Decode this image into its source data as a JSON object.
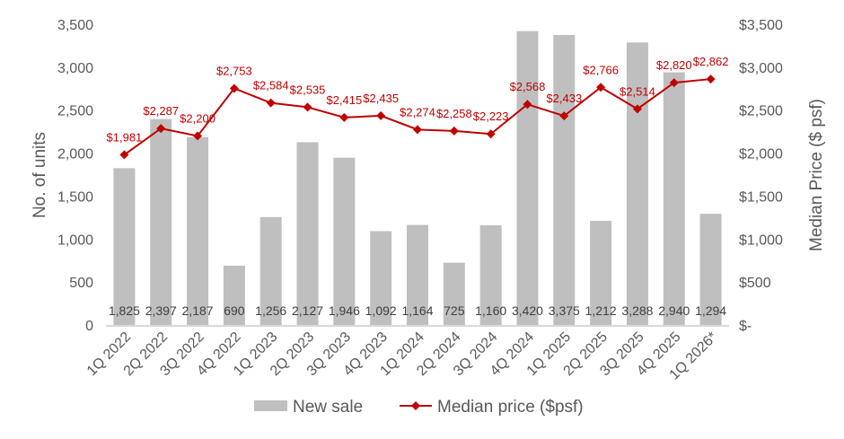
{
  "chart_data": {
    "type": "bar+line",
    "categories": [
      "1Q 2022",
      "2Q 2022",
      "3Q 2022",
      "4Q 2022",
      "1Q 2023",
      "2Q 2023",
      "3Q 2023",
      "4Q 2023",
      "1Q 2024",
      "2Q 2024",
      "3Q 2024",
      "4Q 2024",
      "1Q 2025",
      "2Q 2025",
      "3Q 2025",
      "4Q 2025",
      "1Q 2026*"
    ],
    "series": [
      {
        "name": "New sale",
        "type": "bar",
        "axis": "left",
        "color": "#bfbfbf",
        "values": [
          1825,
          2397,
          2187,
          690,
          1256,
          2127,
          1946,
          1092,
          1164,
          725,
          1160,
          3420,
          3375,
          1212,
          3288,
          2940,
          1294
        ],
        "labels": [
          "1,825",
          "2,397",
          "2,187",
          "690",
          "1,256",
          "2,127",
          "1,946",
          "1,092",
          "1,164",
          "725",
          "1,160",
          "3,420",
          "3,375",
          "1,212",
          "3,288",
          "2,940",
          "1,294"
        ]
      },
      {
        "name": "Median price ($psf)",
        "type": "line",
        "axis": "right",
        "color": "#c00000",
        "values": [
          1981,
          2287,
          2200,
          2753,
          2584,
          2535,
          2415,
          2435,
          2274,
          2258,
          2223,
          2568,
          2433,
          2766,
          2514,
          2820,
          2862
        ],
        "labels": [
          "$1,981",
          "$2,287",
          "$2,200",
          "$2,753",
          "$2,584",
          "$2,535",
          "$2,415",
          "$2,435",
          "$2,274",
          "$2,258",
          "$2,223",
          "$2,568",
          "$2,433",
          "$2,766",
          "$2,514",
          "$2,820",
          "$2,862"
        ]
      }
    ],
    "ylabel": "No. of units",
    "y2label": "Median Price ($ psf)",
    "ylim": [
      0,
      3500
    ],
    "y2lim": [
      0,
      3500
    ],
    "yticks": [
      "0",
      "500",
      "1,000",
      "1,500",
      "2,000",
      "2,500",
      "3,000",
      "3,500"
    ],
    "y2ticks": [
      "$-",
      "$500",
      "$1,000",
      "$1,500",
      "$2,000",
      "$2,500",
      "$3,000",
      "$3,500"
    ],
    "grid": false,
    "legend": "bottom"
  }
}
